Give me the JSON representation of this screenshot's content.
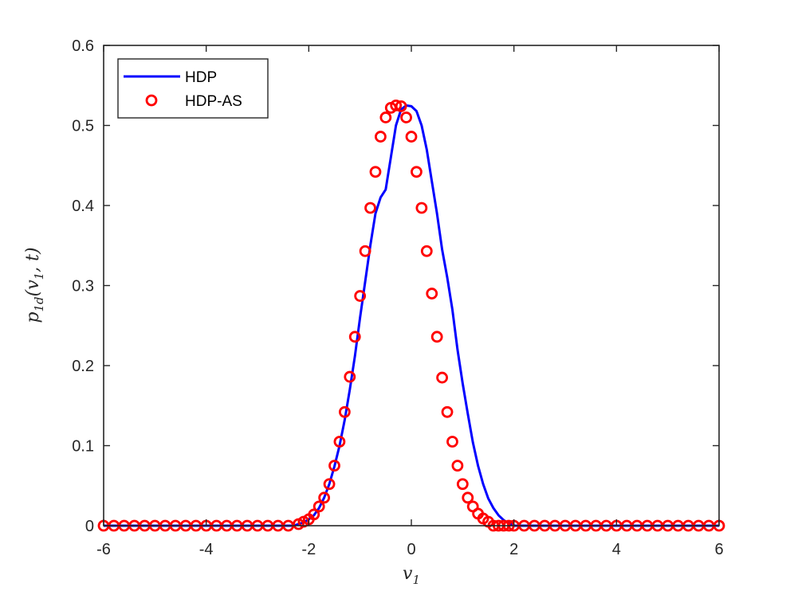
{
  "chart_data": {
    "type": "line",
    "xlabel": "v1",
    "ylabel": "p1d(v1,t)",
    "xlim": [
      -6,
      6
    ],
    "ylim": [
      0,
      0.6
    ],
    "xticks": [
      "-6",
      "-4",
      "-2",
      "0",
      "2",
      "4",
      "6"
    ],
    "yticks": [
      "0",
      "0.1",
      "0.2",
      "0.3",
      "0.4",
      "0.5",
      "0.6"
    ],
    "grid": false,
    "legend_position": "top-left",
    "colors": {
      "HDP": "#0000ff",
      "HDP-AS": "#ff0000",
      "axes": "#262626"
    },
    "series": [
      {
        "name": "HDP",
        "style": "solid line",
        "x": [
          -6,
          -2.3,
          -2.1,
          -2.0,
          -1.9,
          -1.8,
          -1.7,
          -1.6,
          -1.5,
          -1.4,
          -1.3,
          -1.2,
          -1.1,
          -1.0,
          -0.9,
          -0.8,
          -0.7,
          -0.6,
          -0.5,
          -0.4,
          -0.3,
          -0.2,
          -0.1,
          0.0,
          0.1,
          0.2,
          0.3,
          0.4,
          0.5,
          0.6,
          0.7,
          0.8,
          0.9,
          1.0,
          1.1,
          1.2,
          1.3,
          1.4,
          1.5,
          1.6,
          1.7,
          1.8,
          1.9,
          2.0,
          2.1,
          2.3,
          6
        ],
        "y": [
          0.0,
          0.0,
          0.004,
          0.008,
          0.013,
          0.022,
          0.035,
          0.052,
          0.074,
          0.1,
          0.132,
          0.17,
          0.212,
          0.26,
          0.305,
          0.35,
          0.39,
          0.41,
          0.42,
          0.46,
          0.5,
          0.52,
          0.525,
          0.524,
          0.518,
          0.5,
          0.47,
          0.43,
          0.39,
          0.345,
          0.31,
          0.27,
          0.22,
          0.178,
          0.14,
          0.104,
          0.075,
          0.052,
          0.034,
          0.022,
          0.013,
          0.007,
          0.003,
          0.0,
          0.0,
          0.0,
          0.0
        ]
      },
      {
        "name": "HDP-AS",
        "style": "circle markers",
        "x": [
          -6.0,
          -5.8,
          -5.6,
          -5.4,
          -5.2,
          -5.0,
          -4.8,
          -4.6,
          -4.4,
          -4.2,
          -4.0,
          -3.8,
          -3.6,
          -3.4,
          -3.2,
          -3.0,
          -2.8,
          -2.6,
          -2.4,
          -2.2,
          -2.1,
          -2.0,
          -1.9,
          -1.8,
          -1.7,
          -1.6,
          -1.5,
          -1.4,
          -1.3,
          -1.2,
          -1.1,
          -1.0,
          -0.9,
          -0.8,
          -0.7,
          -0.6,
          -0.5,
          -0.4,
          -0.3,
          -0.2,
          -0.1,
          0.0,
          0.1,
          0.2,
          0.3,
          0.4,
          0.5,
          0.6,
          0.7,
          0.8,
          0.9,
          1.0,
          1.1,
          1.2,
          1.3,
          1.4,
          1.5,
          1.6,
          1.7,
          1.8,
          1.9,
          2.0,
          2.2,
          2.4,
          2.6,
          2.8,
          3.0,
          3.2,
          3.4,
          3.6,
          3.8,
          4.0,
          4.2,
          4.4,
          4.6,
          4.8,
          5.0,
          5.2,
          5.4,
          5.6,
          5.8,
          6.0
        ],
        "y": [
          0.0,
          0.0,
          0.0,
          0.0,
          0.0,
          0.0,
          0.0,
          0.0,
          0.0,
          0.0,
          0.0,
          0.0,
          0.0,
          0.0,
          0.0,
          0.0,
          0.0,
          0.0,
          0.0,
          0.002,
          0.005,
          0.008,
          0.014,
          0.024,
          0.035,
          0.052,
          0.075,
          0.105,
          0.142,
          0.186,
          0.236,
          0.287,
          0.343,
          0.397,
          0.442,
          0.486,
          0.51,
          0.522,
          0.525,
          0.524,
          0.51,
          0.486,
          0.442,
          0.397,
          0.343,
          0.29,
          0.236,
          0.185,
          0.142,
          0.105,
          0.075,
          0.052,
          0.035,
          0.024,
          0.015,
          0.009,
          0.005,
          0.0,
          0.0,
          0.0,
          0.0,
          0.0,
          0.0,
          0.0,
          0.0,
          0.0,
          0.0,
          0.0,
          0.0,
          0.0,
          0.0,
          0.0,
          0.0,
          0.0,
          0.0,
          0.0,
          0.0,
          0.0,
          0.0,
          0.0,
          0.0,
          0.0
        ]
      }
    ]
  }
}
